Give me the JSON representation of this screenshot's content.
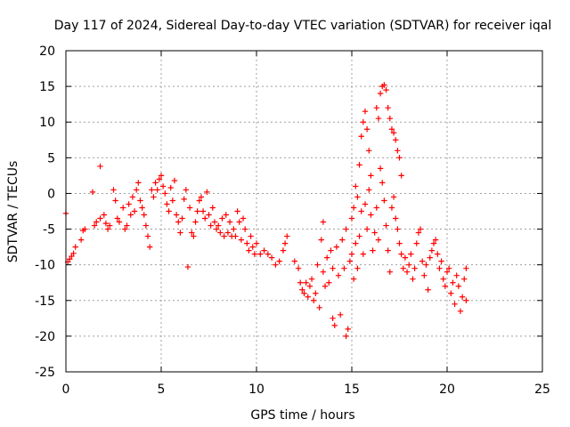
{
  "chart_data": {
    "type": "scatter",
    "title": "Day 117 of 2024, Sidereal Day-to-day VTEC variation (SDTVAR) for receiver iqal",
    "xlabel": "GPS time / hours",
    "ylabel": "SDTVAR / TECUs",
    "xlim": [
      0,
      25
    ],
    "ylim": [
      -25,
      20
    ],
    "xticks": [
      0,
      5,
      10,
      15,
      20,
      25
    ],
    "yticks": [
      -25,
      -20,
      -15,
      -10,
      -5,
      0,
      5,
      10,
      15,
      20
    ],
    "grid": true,
    "marker": "plus",
    "color": "#ff0000",
    "series": [
      {
        "name": "iqal",
        "points": [
          [
            0.0,
            -2.8
          ],
          [
            0.1,
            -9.6
          ],
          [
            0.2,
            -9.2
          ],
          [
            0.3,
            -8.8
          ],
          [
            0.4,
            -8.4
          ],
          [
            0.5,
            -7.5
          ],
          [
            0.8,
            -6.5
          ],
          [
            0.9,
            -5.2
          ],
          [
            1.0,
            -5.0
          ],
          [
            1.4,
            0.2
          ],
          [
            1.5,
            -4.5
          ],
          [
            1.6,
            -4.0
          ],
          [
            1.8,
            3.8
          ],
          [
            1.8,
            -3.5
          ],
          [
            2.0,
            -3.0
          ],
          [
            2.1,
            -4.2
          ],
          [
            2.2,
            -5.0
          ],
          [
            2.3,
            -4.5
          ],
          [
            2.5,
            0.5
          ],
          [
            2.6,
            -1.0
          ],
          [
            2.7,
            -3.5
          ],
          [
            2.8,
            -4.0
          ],
          [
            3.0,
            -2.0
          ],
          [
            3.1,
            -5.0
          ],
          [
            3.2,
            -4.5
          ],
          [
            3.3,
            -1.5
          ],
          [
            3.4,
            -3.0
          ],
          [
            3.5,
            -0.5
          ],
          [
            3.6,
            -2.5
          ],
          [
            3.7,
            0.5
          ],
          [
            3.8,
            1.5
          ],
          [
            3.9,
            -1.0
          ],
          [
            4.0,
            -2.0
          ],
          [
            4.1,
            -3.0
          ],
          [
            4.2,
            -4.5
          ],
          [
            4.3,
            -6.0
          ],
          [
            4.4,
            -7.5
          ],
          [
            4.5,
            0.5
          ],
          [
            4.6,
            -0.5
          ],
          [
            4.7,
            1.5
          ],
          [
            4.8,
            0.5
          ],
          [
            4.9,
            2.0
          ],
          [
            5.0,
            2.5
          ],
          [
            5.1,
            1.0
          ],
          [
            5.2,
            0.0
          ],
          [
            5.3,
            -1.5
          ],
          [
            5.4,
            -2.5
          ],
          [
            5.5,
            0.8
          ],
          [
            5.6,
            -1.0
          ],
          [
            5.7,
            1.8
          ],
          [
            5.8,
            -3.0
          ],
          [
            5.9,
            -4.0
          ],
          [
            6.0,
            -5.5
          ],
          [
            6.1,
            -3.5
          ],
          [
            6.2,
            -0.8
          ],
          [
            6.3,
            0.5
          ],
          [
            6.4,
            -10.3
          ],
          [
            6.5,
            -2.0
          ],
          [
            6.6,
            -5.5
          ],
          [
            6.7,
            -6.0
          ],
          [
            6.8,
            -4.0
          ],
          [
            6.9,
            -2.5
          ],
          [
            7.0,
            -1.0
          ],
          [
            7.1,
            -0.5
          ],
          [
            7.2,
            -2.5
          ],
          [
            7.3,
            -3.5
          ],
          [
            7.4,
            0.2
          ],
          [
            7.5,
            -3.0
          ],
          [
            7.6,
            -4.5
          ],
          [
            7.7,
            -2.0
          ],
          [
            7.8,
            -4.0
          ],
          [
            7.9,
            -5.0
          ],
          [
            8.0,
            -4.5
          ],
          [
            8.1,
            -5.5
          ],
          [
            8.2,
            -3.5
          ],
          [
            8.3,
            -6.0
          ],
          [
            8.4,
            -3.0
          ],
          [
            8.5,
            -5.5
          ],
          [
            8.6,
            -4.0
          ],
          [
            8.7,
            -6.0
          ],
          [
            8.8,
            -5.0
          ],
          [
            8.9,
            -6.0
          ],
          [
            9.0,
            -2.5
          ],
          [
            9.1,
            -4.0
          ],
          [
            9.2,
            -6.5
          ],
          [
            9.3,
            -3.5
          ],
          [
            9.4,
            -5.0
          ],
          [
            9.5,
            -7.0
          ],
          [
            9.6,
            -8.0
          ],
          [
            9.7,
            -6.0
          ],
          [
            9.8,
            -7.5
          ],
          [
            9.9,
            -8.5
          ],
          [
            10.0,
            -7.0
          ],
          [
            10.2,
            -8.5
          ],
          [
            10.4,
            -8.0
          ],
          [
            10.6,
            -8.5
          ],
          [
            10.8,
            -9.0
          ],
          [
            11.0,
            -10.0
          ],
          [
            11.2,
            -9.5
          ],
          [
            11.4,
            -8.0
          ],
          [
            11.5,
            -7.0
          ],
          [
            11.6,
            -6.0
          ],
          [
            12.0,
            -9.5
          ],
          [
            12.2,
            -10.5
          ],
          [
            12.3,
            -12.5
          ],
          [
            12.4,
            -13.5
          ],
          [
            12.5,
            -14.0
          ],
          [
            12.6,
            -12.5
          ],
          [
            12.7,
            -14.5
          ],
          [
            12.8,
            -13.0
          ],
          [
            12.9,
            -12.0
          ],
          [
            13.0,
            -15.0
          ],
          [
            13.1,
            -14.0
          ],
          [
            13.2,
            -10.0
          ],
          [
            13.3,
            -16.0
          ],
          [
            13.4,
            -6.5
          ],
          [
            13.5,
            -4.0
          ],
          [
            13.5,
            -11.0
          ],
          [
            13.6,
            -13.0
          ],
          [
            13.7,
            -9.0
          ],
          [
            13.8,
            -12.5
          ],
          [
            13.9,
            -8.0
          ],
          [
            14.0,
            -17.5
          ],
          [
            14.0,
            -10.5
          ],
          [
            14.1,
            -18.5
          ],
          [
            14.2,
            -7.5
          ],
          [
            14.3,
            -11.5
          ],
          [
            14.4,
            -17.0
          ],
          [
            14.5,
            -6.5
          ],
          [
            14.6,
            -10.5
          ],
          [
            14.7,
            -20.0
          ],
          [
            14.7,
            -5.0
          ],
          [
            14.8,
            -19.0
          ],
          [
            14.9,
            -9.5
          ],
          [
            15.0,
            -3.5
          ],
          [
            15.0,
            -8.5
          ],
          [
            15.1,
            -2.0
          ],
          [
            15.1,
            -12.0
          ],
          [
            15.2,
            1.0
          ],
          [
            15.2,
            -7.0
          ],
          [
            15.3,
            -0.5
          ],
          [
            15.3,
            -10.5
          ],
          [
            15.4,
            4.0
          ],
          [
            15.4,
            -6.0
          ],
          [
            15.5,
            8.0
          ],
          [
            15.5,
            -2.5
          ],
          [
            15.6,
            10.0
          ],
          [
            15.6,
            -8.5
          ],
          [
            15.7,
            11.5
          ],
          [
            15.7,
            -1.5
          ],
          [
            15.8,
            9.0
          ],
          [
            15.8,
            -5.0
          ],
          [
            15.9,
            6.0
          ],
          [
            15.9,
            0.5
          ],
          [
            16.0,
            2.5
          ],
          [
            16.0,
            -3.0
          ],
          [
            16.1,
            -8.0
          ],
          [
            16.2,
            -5.5
          ],
          [
            16.3,
            -2.0
          ],
          [
            16.3,
            12.0
          ],
          [
            16.4,
            -6.5
          ],
          [
            16.4,
            10.5
          ],
          [
            16.5,
            14.0
          ],
          [
            16.5,
            3.5
          ],
          [
            16.6,
            15.0
          ],
          [
            16.6,
            1.5
          ],
          [
            16.7,
            -1.0
          ],
          [
            16.7,
            15.2
          ],
          [
            16.8,
            14.5
          ],
          [
            16.8,
            -4.5
          ],
          [
            16.9,
            12.0
          ],
          [
            16.9,
            -8.0
          ],
          [
            17.0,
            10.5
          ],
          [
            17.0,
            -11.0
          ],
          [
            17.1,
            9.0
          ],
          [
            17.1,
            -2.0
          ],
          [
            17.2,
            8.5
          ],
          [
            17.2,
            -0.5
          ],
          [
            17.3,
            7.5
          ],
          [
            17.3,
            -3.5
          ],
          [
            17.4,
            6.0
          ],
          [
            17.4,
            -5.0
          ],
          [
            17.5,
            5.0
          ],
          [
            17.5,
            -7.0
          ],
          [
            17.6,
            2.5
          ],
          [
            17.6,
            -8.5
          ],
          [
            17.7,
            -10.5
          ],
          [
            17.8,
            -9.0
          ],
          [
            17.9,
            -11.0
          ],
          [
            18.0,
            -10.0
          ],
          [
            18.1,
            -8.5
          ],
          [
            18.2,
            -12.0
          ],
          [
            18.3,
            -10.5
          ],
          [
            18.4,
            -7.0
          ],
          [
            18.5,
            -5.5
          ],
          [
            18.6,
            -5.0
          ],
          [
            18.7,
            -9.5
          ],
          [
            18.8,
            -11.5
          ],
          [
            18.9,
            -10.0
          ],
          [
            19.0,
            -13.5
          ],
          [
            19.1,
            -9.0
          ],
          [
            19.2,
            -8.0
          ],
          [
            19.3,
            -7.0
          ],
          [
            19.4,
            -6.5
          ],
          [
            19.5,
            -8.5
          ],
          [
            19.6,
            -10.5
          ],
          [
            19.7,
            -9.5
          ],
          [
            19.8,
            -12.0
          ],
          [
            19.9,
            -13.0
          ],
          [
            20.0,
            -11.0
          ],
          [
            20.1,
            -10.5
          ],
          [
            20.2,
            -14.0
          ],
          [
            20.3,
            -12.5
          ],
          [
            20.4,
            -15.5
          ],
          [
            20.5,
            -11.5
          ],
          [
            20.6,
            -13.0
          ],
          [
            20.7,
            -16.5
          ],
          [
            20.8,
            -14.5
          ],
          [
            20.9,
            -12.0
          ],
          [
            21.0,
            -15.0
          ],
          [
            21.0,
            -10.5
          ]
        ]
      }
    ]
  }
}
